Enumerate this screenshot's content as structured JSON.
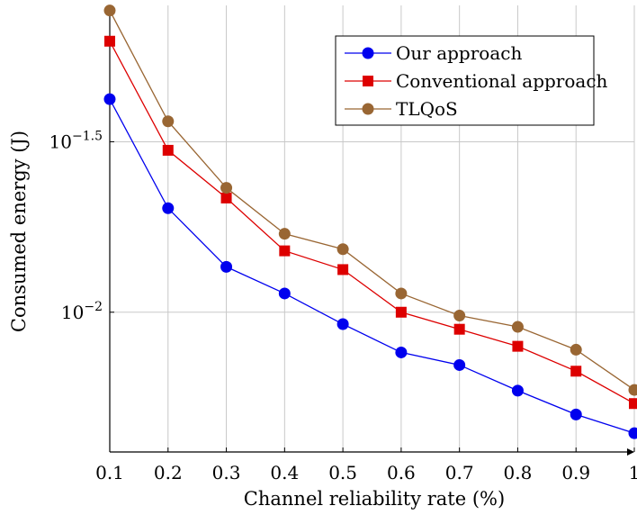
{
  "chart_data": {
    "type": "line",
    "x": [
      0.1,
      0.2,
      0.3,
      0.4,
      0.5,
      0.6,
      0.7,
      0.8,
      0.9,
      1
    ],
    "x_tick_labels": [
      "0.1",
      "0.2",
      "0.3",
      "0.4",
      "0.5",
      "0.6",
      "0.7",
      "0.8",
      "0.9",
      "1"
    ],
    "xlabel": "Channel reliability rate (%)",
    "ylabel": "Consumed energy (J)",
    "y_scale": "log10",
    "y_ticks": [
      {
        "value": -1.5,
        "base": "10",
        "exponent": "−1.5"
      },
      {
        "value": -2,
        "base": "10",
        "exponent": "−2"
      }
    ],
    "ylim_log10": [
      -2.41,
      -1.1
    ],
    "grid": true,
    "legend_position": "top-right",
    "series": [
      {
        "name": "Our approach",
        "color": "#0000ee",
        "marker": "circle",
        "values_log10": [
          -1.375,
          -1.695,
          -1.867,
          -1.945,
          -2.035,
          -2.118,
          -2.155,
          -2.23,
          -2.3,
          -2.355
        ]
      },
      {
        "name": "Conventional approach",
        "color": "#dd0000",
        "marker": "square",
        "values_log10": [
          -1.205,
          -1.525,
          -1.665,
          -1.82,
          -1.875,
          -2.0,
          -2.05,
          -2.1,
          -2.173,
          -2.268
        ]
      },
      {
        "name": "TLQoS",
        "color": "#996633",
        "marker": "circle",
        "values_log10": [
          -1.115,
          -1.44,
          -1.635,
          -1.77,
          -1.815,
          -1.945,
          -2.01,
          -2.043,
          -2.11,
          -2.228
        ]
      }
    ]
  }
}
